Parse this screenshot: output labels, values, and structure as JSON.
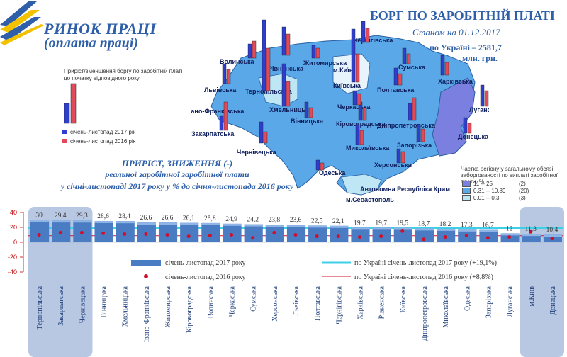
{
  "header": {
    "title_line1": "РИНОК ПРАЦІ",
    "title_line2": "(оплата праці)",
    "borg_title": "БОРГ ПО ЗАРОБІТНІЙ ПЛАТІ",
    "as_of": "Станом на 01.12.2017",
    "ukraine_total_line1": "по Україні – 2581,7",
    "ukraine_total_line2": "млн. грн.",
    "colors": {
      "accent": "#2e5fa8",
      "logo_yellow": "#f2c200",
      "logo_blue": "#2e5fa8"
    }
  },
  "map_legend": {
    "title_line1": "Приріст/зменшення боргу по заробітній платі",
    "title_line2": "до початку відповідного року",
    "series_2017": "січень-листопад 2017 рік",
    "series_2016": "січень-листопад 2016 рік",
    "share_title_line1": "Частка регіону у загальному обсязі",
    "share_title_line2": "заборгованості по виплаті заробітної плати, %",
    "share_bins": [
      {
        "range": "11 -- 25",
        "count": "(2)",
        "color": "#7b7fe0"
      },
      {
        "range": "0,31 -- 10,89",
        "count": "(20)",
        "color": "#5aa8e8"
      },
      {
        "range": "0,01 -- 0,3",
        "count": "(3)",
        "color": "#bfe6f5"
      }
    ]
  },
  "map_regions": [
    "Волинська",
    "Рівненська",
    "Житомирська",
    "Чернігівська",
    "м.Київ",
    "Київська",
    "Сумська",
    "Львівська",
    "Тернопільська",
    "Хмельницька",
    "Полтавська",
    "Харківська",
    "вано-Франківська",
    "Вінницька",
    "Черкаська",
    "Кіровоградська",
    "Дніпропетровська",
    "Луганська",
    "Закарпатська",
    "Чернівецька",
    "Запорізька",
    "Донецька",
    "Миколаївська",
    "Херсонська",
    "Одеська",
    "Автономна Республіка Крим",
    "м.Севастополь"
  ],
  "section_title": {
    "line1": "ПРИРІСТ, ЗНИЖЕННЯ (-)",
    "line2": "реальної заробітної заробітної плати",
    "line3": "у січні-листопаді 2017 року  у % до січня-листопада 2016 року"
  },
  "chart_data": {
    "type": "bar",
    "title": "",
    "categories": [
      "Тернопільська",
      "Закарпатська",
      "Чернівецька",
      "Вінницька",
      "Хмельницька",
      "Івано-Франківська",
      "Житомирська",
      "Кіровоградська",
      "Волинська",
      "Черкаська",
      "Сумська",
      "Херсонська",
      "Львівська",
      "Полтавська",
      "Чернігівська",
      "Харківська",
      "Рівненська",
      "Київська",
      "Дніпропетровська",
      "Миколаївська",
      "Одеська",
      "Запорізька",
      "Луганська",
      "м.Київ",
      "Донецька"
    ],
    "series": [
      {
        "name": "січень-листопад 2017 року",
        "type": "bar",
        "color": "#4a7cc4",
        "values": [
          30,
          29.4,
          29.3,
          28.6,
          28.4,
          26.6,
          26.6,
          26.1,
          25.8,
          24.9,
          24.2,
          23.8,
          23.6,
          22.5,
          22.1,
          19.7,
          19.7,
          19.5,
          18.7,
          18.2,
          17.3,
          16.7,
          12,
          11.3,
          10.4
        ]
      },
      {
        "name": "січень-листопад 2016 року",
        "type": "scatter",
        "color": "#d0102a",
        "values": [
          10,
          13,
          13,
          12,
          11,
          11,
          10,
          8,
          9,
          10,
          6,
          13,
          10,
          8,
          8,
          7,
          8,
          15,
          4,
          7,
          9,
          6,
          7,
          14,
          5
        ]
      }
    ],
    "value_labels": [
      "30",
      "29,4",
      "29,3",
      "28,6",
      "28,4",
      "26,6",
      "26,6",
      "26,1",
      "25,8",
      "24,9",
      "24,2",
      "23,8",
      "23,6",
      "22,5",
      "22,1",
      "19,7",
      "19,7",
      "19,5",
      "18,7",
      "18,2",
      "17,3",
      "16,7",
      "12",
      "11,3",
      "10,4"
    ],
    "reference_lines": [
      {
        "name": "по Україні січень-листопад 2017 року (+19,1%)",
        "value": 19.1,
        "color": "#3fd0e8"
      },
      {
        "name": "по Україні січень-листопад 2016 року (+8,8%)",
        "value": 8.8,
        "color": "#d0102a"
      }
    ],
    "ylim": [
      -40,
      40
    ],
    "yticks": [
      "40",
      "20",
      "0",
      "-20",
      "-40"
    ],
    "ytick_values": [
      40,
      20,
      0,
      -20,
      -40
    ],
    "legend_position": "bottom"
  },
  "map_bars": [
    {
      "region": "Волинська",
      "v2017": 20,
      "v2016": 24
    },
    {
      "region": "Рівненська",
      "v2017": 40,
      "v2016": 30
    },
    {
      "region": "Житомирська",
      "v2017": 18,
      "v2016": 14
    },
    {
      "region": "Чернігівська",
      "v2017": 30,
      "v2016": 20
    },
    {
      "region": "Сумська",
      "v2017": 22,
      "v2016": 14
    },
    {
      "region": "Львівська",
      "v2017": 28,
      "v2016": 20
    },
    {
      "region": "Тернопільська",
      "v2017": 100,
      "v2016": 60
    },
    {
      "region": "Хмельницька",
      "v2017": 60,
      "v2016": 35
    },
    {
      "region": "Київська",
      "v2017": 75,
      "v2016": 40
    },
    {
      "region": "Полтавська",
      "v2017": 24,
      "v2016": 16
    },
    {
      "region": "Харківська",
      "v2017": 28,
      "v2016": 18
    },
    {
      "region": "Кіровоградська",
      "v2017": 26,
      "v2016": 18
    },
    {
      "region": "Дніпропетровська",
      "v2017": 24,
      "v2016": 32
    },
    {
      "region": "Луганська",
      "v2017": 30,
      "v2016": 22
    },
    {
      "region": "Черкаська",
      "v2017": 20,
      "v2016": 16
    },
    {
      "region": "Вінницька",
      "v2017": 22,
      "v2016": 14
    },
    {
      "region": "Закарпатська",
      "v2017": 20,
      "v2016": 40
    },
    {
      "region": "Чернівецька",
      "v2017": 30,
      "v2016": 16
    },
    {
      "region": "Запорізька",
      "v2017": 24,
      "v2016": 18
    },
    {
      "region": "Миколаївська",
      "v2017": 28,
      "v2016": 20
    },
    {
      "region": "Херсонська",
      "v2017": 20,
      "v2016": 16
    },
    {
      "region": "Одеська",
      "v2017": 14,
      "v2016": 10
    },
    {
      "region": "Донецька",
      "v2017": 22,
      "v2016": 14
    }
  ]
}
